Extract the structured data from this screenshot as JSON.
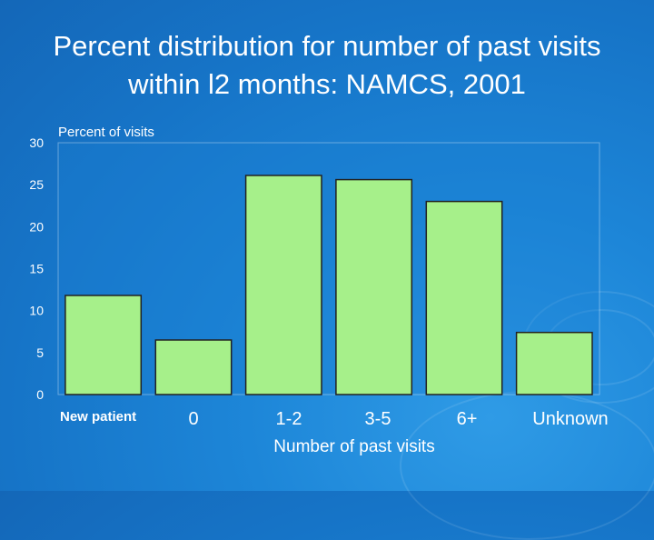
{
  "title": "Percent distribution for number of past visits within l2 months: NAMCS, 2001",
  "colors": {
    "bar_fill": "#a6f08a",
    "bar_stroke": "#222222",
    "plot_bg": "#1a7fd2",
    "text": "#ffffff"
  },
  "chart_data": {
    "type": "bar",
    "title": "Percent distribution for number of past visits within l2 months: NAMCS, 2001",
    "ylabel": "Percent of visits",
    "xlabel": "Number of past visits",
    "categories": [
      "New patient",
      "0",
      "1-2",
      "3-5",
      "6+",
      "Unknown"
    ],
    "values": [
      11.8,
      6.5,
      26.1,
      25.6,
      23.0,
      7.4
    ],
    "ylim": [
      0,
      30
    ],
    "yticks": [
      0,
      5,
      10,
      15,
      20,
      25,
      30
    ],
    "grid": false
  }
}
